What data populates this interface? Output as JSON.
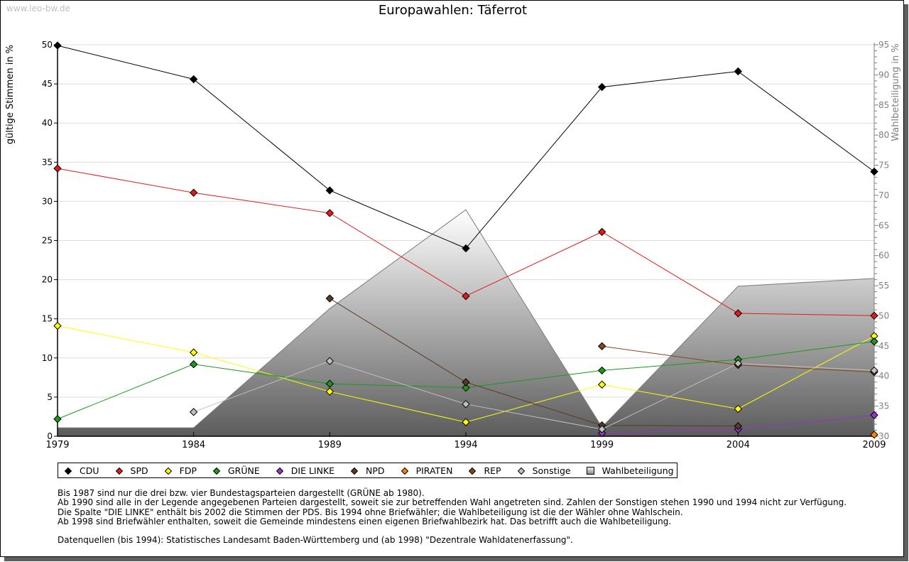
{
  "page": {
    "watermark": "www.leo-bw.de",
    "notes": [
      "Bis 1987 sind nur die drei bzw. vier Bundestagsparteien dargestellt (GRÜNE ab 1980).",
      "Ab 1990 sind alle in der Legende angegebenen Parteien dargestellt, soweit sie zur betreffenden Wahl angetreten sind. Zahlen der Sonstigen stehen 1990 und 1994 nicht zur Verfügung.",
      "Die Spalte \"DIE LINKE\" enthält bis 2002 die Stimmen der PDS. Bis 1994 ohne Briefwähler; die Wahlbeteiligung ist die der Wähler ohne Wahlschein.",
      "Ab 1998 sind Briefwähler enthalten, soweit die Gemeinde mindestens einen eigenen Briefwahlbezirk hat. Das betrifft auch die Wahlbeteiligung."
    ],
    "source": "Datenquellen (bis 1994): Statistisches Landesamt Baden-Württemberg und (ab 1998) \"Dezentrale Wahldatenerfassung\"."
  },
  "chart_data": {
    "type": "line",
    "title": "Europawahlen: Täferrot",
    "xlabel": "",
    "ylabel": "gültige Stimmen in %",
    "y2label": "Wahlbeteiligung in %",
    "x": [
      1979,
      1984,
      1989,
      1994,
      1999,
      2004,
      2009
    ],
    "xticks": [
      "1979",
      "1984",
      "1989",
      "1994",
      "1999",
      "2004",
      "2009"
    ],
    "ylim": [
      0,
      50
    ],
    "yticks": [
      0,
      5,
      10,
      15,
      20,
      25,
      30,
      35,
      40,
      45,
      50
    ],
    "y2lim": [
      30,
      95
    ],
    "y2ticks": [
      30,
      35,
      40,
      45,
      50,
      55,
      60,
      65,
      70,
      75,
      80,
      85,
      90,
      95
    ],
    "grid": true,
    "legend_position": "bottom",
    "series": [
      {
        "name": "CDU",
        "color": "#000000",
        "values": [
          49.9,
          45.6,
          31.4,
          24.0,
          44.6,
          46.6,
          33.8
        ]
      },
      {
        "name": "SPD",
        "color": "#e31a1c",
        "values": [
          34.2,
          31.1,
          28.5,
          17.9,
          26.1,
          15.7,
          15.4
        ]
      },
      {
        "name": "FDP",
        "color": "#ffff00",
        "values": [
          14.1,
          10.7,
          5.7,
          1.8,
          6.6,
          3.5,
          12.8
        ]
      },
      {
        "name": "GRÜNE",
        "color": "#1a9a1a",
        "values": [
          2.2,
          9.2,
          6.7,
          6.2,
          8.4,
          9.8,
          12.1
        ]
      },
      {
        "name": "DIE LINKE",
        "color": "#9932cc",
        "values": [
          null,
          null,
          null,
          null,
          0.4,
          0.9,
          2.7
        ]
      },
      {
        "name": "NPD",
        "color": "#5a3a22",
        "values": [
          null,
          null,
          17.6,
          6.9,
          1.4,
          1.3,
          null
        ]
      },
      {
        "name": "PIRATEN",
        "color": "#ff8000",
        "values": [
          null,
          null,
          null,
          null,
          null,
          null,
          0.2
        ]
      },
      {
        "name": "REP",
        "color": "#8b4513",
        "values": [
          null,
          null,
          null,
          null,
          11.5,
          9.1,
          8.2
        ]
      },
      {
        "name": "Sonstige",
        "color": "#c0c0c0",
        "values": [
          null,
          3.1,
          9.6,
          4.1,
          0.9,
          9.3,
          8.4
        ]
      }
    ],
    "area_series": {
      "name": "Wahlbeteiligung",
      "axis": "right",
      "values": [
        31.4,
        31.4,
        51.2,
        67.6,
        31.5,
        54.9,
        56.2
      ]
    }
  }
}
